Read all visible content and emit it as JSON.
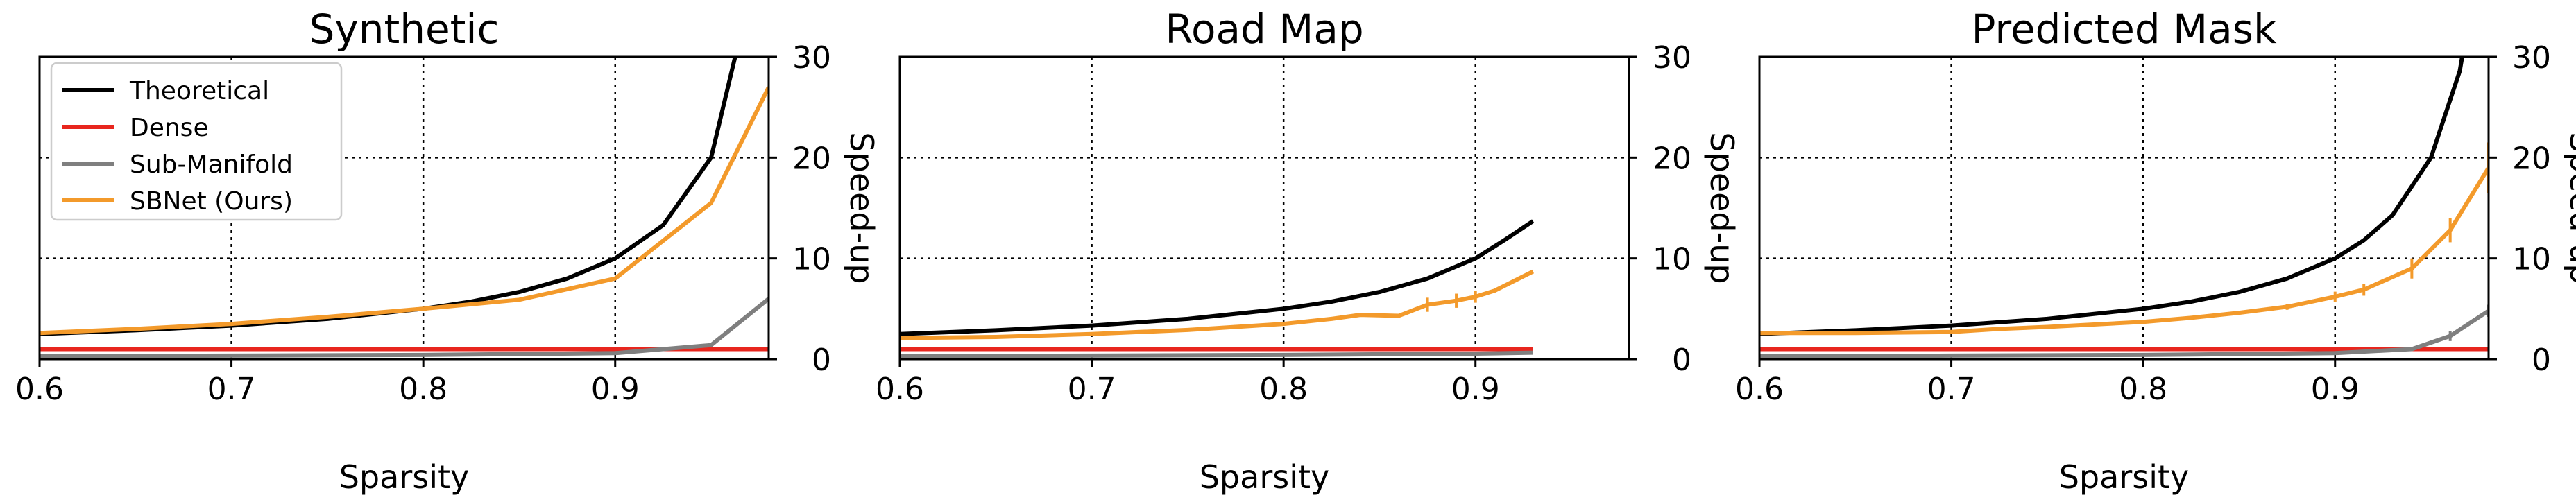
{
  "chart_data": [
    {
      "type": "line",
      "title": "Synthetic",
      "xlabel": "Sparsity",
      "ylabel": "Speed-up",
      "xlim": [
        0.6,
        0.98
      ],
      "ylim": [
        0,
        30
      ],
      "xticks": [
        "0.6",
        "0.7",
        "0.8",
        "0.9"
      ],
      "yticks": [
        "0",
        "10",
        "20",
        "30"
      ],
      "y_axis_side": "right",
      "grid": true,
      "legend": {
        "placement": "upper-left",
        "entries": [
          "Theoretical",
          "Dense",
          "Sub-Manifold",
          "SBNet (Ours)"
        ]
      },
      "series": [
        {
          "name": "Theoretical",
          "color": "#000000",
          "x": [
            0.6,
            0.65,
            0.7,
            0.75,
            0.8,
            0.825,
            0.85,
            0.875,
            0.9,
            0.925,
            0.95,
            0.975
          ],
          "y": [
            2.5,
            2.86,
            3.33,
            4.0,
            5.0,
            5.71,
            6.67,
            8.0,
            10.0,
            13.3,
            20.0,
            40.0
          ]
        },
        {
          "name": "Dense",
          "color": "#e8261e",
          "x": [
            0.6,
            0.98
          ],
          "y": [
            1.0,
            1.0
          ]
        },
        {
          "name": "Sub-Manifold",
          "color": "#7f7f7f",
          "x": [
            0.6,
            0.7,
            0.8,
            0.9,
            0.95,
            0.98
          ],
          "y": [
            0.3,
            0.35,
            0.42,
            0.6,
            1.4,
            6.0
          ]
        },
        {
          "name": "SBNet (Ours)",
          "color": "#f39a2b",
          "x": [
            0.6,
            0.65,
            0.7,
            0.75,
            0.8,
            0.85,
            0.9,
            0.95,
            0.98
          ],
          "y": [
            2.6,
            3.0,
            3.5,
            4.2,
            5.0,
            5.9,
            8.0,
            15.5,
            27.0
          ]
        }
      ]
    },
    {
      "type": "line",
      "title": "Road Map",
      "xlabel": "Sparsity",
      "ylabel": "Speed-up",
      "xlim": [
        0.6,
        0.98
      ],
      "ylim": [
        0,
        30
      ],
      "xticks": [
        "0.6",
        "0.7",
        "0.8",
        "0.9"
      ],
      "yticks": [
        "0",
        "10",
        "20",
        "30"
      ],
      "y_axis_side": "right",
      "grid": true,
      "series": [
        {
          "name": "Theoretical",
          "color": "#000000",
          "x": [
            0.6,
            0.65,
            0.7,
            0.75,
            0.8,
            0.825,
            0.85,
            0.875,
            0.9,
            0.915,
            0.93
          ],
          "y": [
            2.5,
            2.86,
            3.33,
            4.0,
            5.0,
            5.71,
            6.67,
            8.0,
            10.0,
            11.8,
            13.7
          ]
        },
        {
          "name": "Dense",
          "color": "#e8261e",
          "x": [
            0.6,
            0.93
          ],
          "y": [
            1.0,
            1.0
          ]
        },
        {
          "name": "Sub-Manifold",
          "color": "#7f7f7f",
          "x": [
            0.6,
            0.7,
            0.8,
            0.9,
            0.93
          ],
          "y": [
            0.3,
            0.35,
            0.42,
            0.55,
            0.65
          ]
        },
        {
          "name": "SBNet (Ours)",
          "color": "#f39a2b",
          "x": [
            0.6,
            0.65,
            0.7,
            0.725,
            0.75,
            0.775,
            0.8,
            0.825,
            0.84,
            0.86,
            0.875,
            0.89,
            0.9,
            0.91,
            0.93
          ],
          "y": [
            2.1,
            2.2,
            2.5,
            2.7,
            2.9,
            3.2,
            3.5,
            4.0,
            4.4,
            4.3,
            5.4,
            5.8,
            6.2,
            6.8,
            8.7
          ],
          "errors": [
            0,
            0,
            0,
            0,
            0,
            0,
            0,
            0,
            0,
            0,
            0.7,
            0.7,
            0.6,
            0,
            0
          ]
        }
      ]
    },
    {
      "type": "line",
      "title": "Predicted Mask",
      "xlabel": "Sparsity",
      "ylabel": "Speed-up",
      "xlim": [
        0.6,
        0.98
      ],
      "ylim": [
        0,
        30
      ],
      "xticks": [
        "0.6",
        "0.7",
        "0.8",
        "0.9"
      ],
      "yticks": [
        "0",
        "10",
        "20",
        "30"
      ],
      "y_axis_side": "right",
      "grid": true,
      "series": [
        {
          "name": "Theoretical",
          "color": "#000000",
          "x": [
            0.6,
            0.65,
            0.7,
            0.75,
            0.8,
            0.825,
            0.85,
            0.875,
            0.9,
            0.915,
            0.93,
            0.95,
            0.965,
            0.975
          ],
          "y": [
            2.5,
            2.86,
            3.33,
            4.0,
            5.0,
            5.71,
            6.67,
            8.0,
            10.0,
            11.8,
            14.3,
            20.0,
            28.6,
            40.0
          ]
        },
        {
          "name": "Dense",
          "color": "#e8261e",
          "x": [
            0.6,
            0.98
          ],
          "y": [
            1.0,
            1.0
          ]
        },
        {
          "name": "Sub-Manifold",
          "color": "#7f7f7f",
          "x": [
            0.6,
            0.7,
            0.8,
            0.9,
            0.94,
            0.96,
            0.98
          ],
          "y": [
            0.3,
            0.35,
            0.42,
            0.6,
            1.0,
            2.3,
            4.8
          ],
          "errors": [
            0,
            0,
            0,
            0,
            0,
            0.5,
            0.6
          ]
        },
        {
          "name": "SBNet (Ours)",
          "color": "#f39a2b",
          "x": [
            0.6,
            0.65,
            0.7,
            0.725,
            0.75,
            0.8,
            0.825,
            0.85,
            0.875,
            0.9,
            0.915,
            0.94,
            0.96,
            0.98
          ],
          "y": [
            2.6,
            2.6,
            2.7,
            3.0,
            3.2,
            3.7,
            4.1,
            4.6,
            5.2,
            6.2,
            6.9,
            9.0,
            12.8,
            19.0
          ],
          "errors": [
            0,
            0,
            0,
            0,
            0,
            0,
            0,
            0,
            0.3,
            0.5,
            0.6,
            1.0,
            1.2,
            2.5
          ]
        }
      ]
    }
  ]
}
